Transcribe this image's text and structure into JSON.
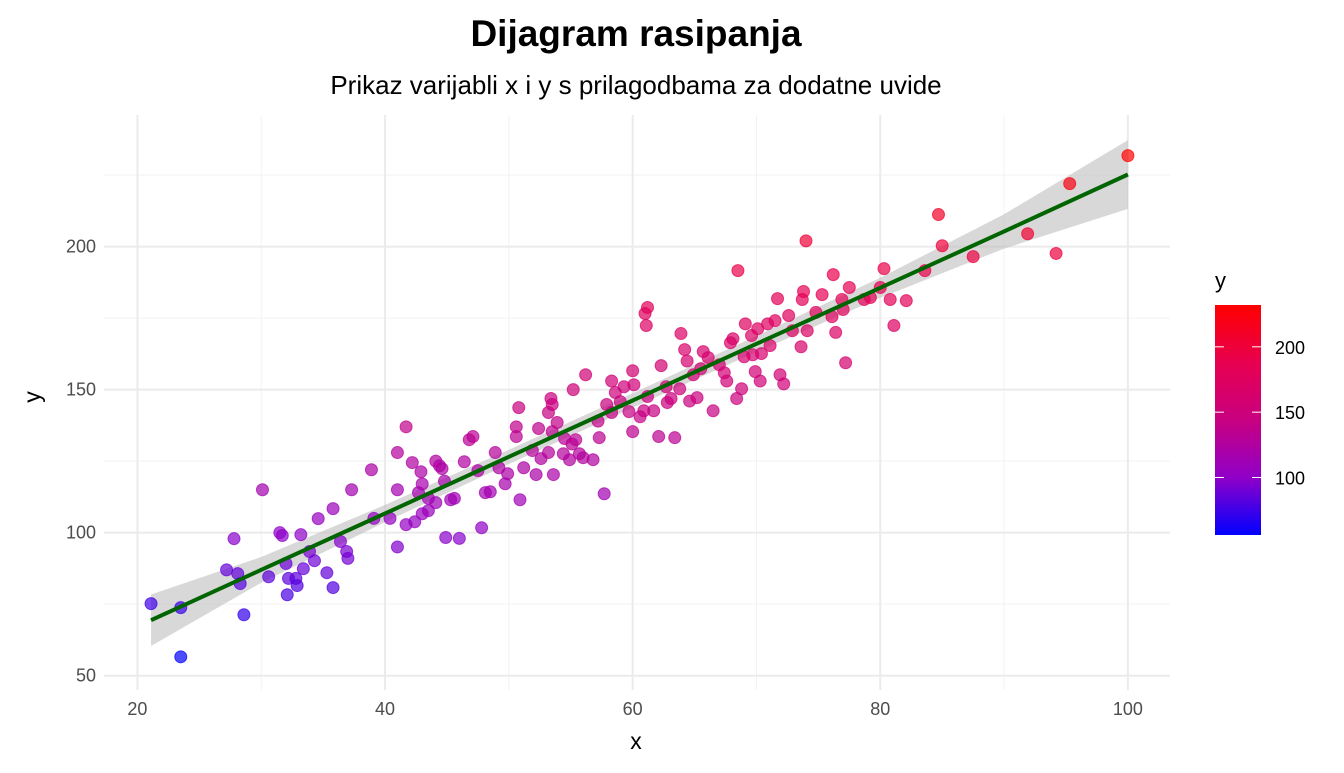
{
  "chart_data": {
    "type": "scatter",
    "title": "Dijagram rasipanja",
    "subtitle": "Prikaz varijabli x i y s prilagodbama za dodatne uvide",
    "xlabel": "x",
    "ylabel": "y",
    "xlim": [
      17.3,
      103.4
    ],
    "ylim": [
      45,
      246
    ],
    "x_ticks": [
      20,
      40,
      60,
      80,
      100
    ],
    "y_ticks": [
      50,
      100,
      150,
      200
    ],
    "x_minor": [
      30,
      50,
      70,
      90
    ],
    "y_minor": [
      75,
      125,
      175,
      225
    ],
    "grid": true,
    "legend": {
      "title": "y",
      "placement": "right",
      "range": [
        56,
        232
      ],
      "ticks": [
        100,
        150,
        200
      ],
      "colors": [
        "#0000FF",
        "#9000C8",
        "#C80080",
        "#E80050",
        "#FF0000"
      ]
    },
    "point_alpha": 0.7,
    "smooth": {
      "color": "#006400",
      "ribbon_color": "#BEBEBE",
      "points": [
        {
          "x": 21.1,
          "y": 69.4,
          "se": 9
        },
        {
          "x": 30,
          "y": 87.0,
          "se": 4.5
        },
        {
          "x": 40,
          "y": 106.7,
          "se": 3
        },
        {
          "x": 50,
          "y": 126.5,
          "se": 2.5
        },
        {
          "x": 60,
          "y": 146.2,
          "se": 2.5
        },
        {
          "x": 70,
          "y": 166.0,
          "se": 2.8
        },
        {
          "x": 80,
          "y": 185.6,
          "se": 3.5
        },
        {
          "x": 90,
          "y": 205.3,
          "se": 6
        },
        {
          "x": 100,
          "y": 225.2,
          "se": 12
        }
      ]
    },
    "points": [
      [
        21.1,
        75.2
      ],
      [
        23.5,
        73.8
      ],
      [
        23.5,
        56.6
      ],
      [
        27.2,
        87
      ],
      [
        27.8,
        97.9
      ],
      [
        28.1,
        85.7
      ],
      [
        28.3,
        82.2
      ],
      [
        28.6,
        71.3
      ],
      [
        30.1,
        115
      ],
      [
        30.6,
        84.6
      ],
      [
        31.5,
        100
      ],
      [
        31.7,
        99
      ],
      [
        32,
        89.2
      ],
      [
        32.1,
        78.3
      ],
      [
        32.2,
        84
      ],
      [
        32.8,
        84
      ],
      [
        32.9,
        81.5
      ],
      [
        33.2,
        99.3
      ],
      [
        33.4,
        87.4
      ],
      [
        33.9,
        93.4
      ],
      [
        34.3,
        90.2
      ],
      [
        34.6,
        104.9
      ],
      [
        35.3,
        86
      ],
      [
        35.8,
        108.4
      ],
      [
        35.8,
        80.8
      ],
      [
        36.4,
        96.9
      ],
      [
        36.9,
        93.4
      ],
      [
        37,
        91
      ],
      [
        37.3,
        115
      ],
      [
        38.9,
        122
      ],
      [
        39.1,
        105
      ],
      [
        40.4,
        105
      ],
      [
        41,
        115
      ],
      [
        41,
        95
      ],
      [
        41,
        128
      ],
      [
        41.7,
        137
      ],
      [
        41.7,
        102.8
      ],
      [
        42.2,
        124.5
      ],
      [
        42.4,
        103.8
      ],
      [
        42.7,
        114
      ],
      [
        42.9,
        121.3
      ],
      [
        43,
        117
      ],
      [
        43,
        106.6
      ],
      [
        43.5,
        112
      ],
      [
        43.5,
        107.7
      ],
      [
        44.1,
        125
      ],
      [
        44.1,
        110.5
      ],
      [
        44.4,
        123.4
      ],
      [
        44.6,
        122.4
      ],
      [
        44.8,
        118
      ],
      [
        44.9,
        98.3
      ],
      [
        45.3,
        111.5
      ],
      [
        45.6,
        112
      ],
      [
        46,
        98
      ],
      [
        46.4,
        124.8
      ],
      [
        46.8,
        132.5
      ],
      [
        47.1,
        133.6
      ],
      [
        47.5,
        121.7
      ],
      [
        47.8,
        101.7
      ],
      [
        48.1,
        114
      ],
      [
        48.5,
        114.3
      ],
      [
        48.9,
        128
      ],
      [
        49.2,
        122.7
      ],
      [
        49.7,
        117.1
      ],
      [
        49.9,
        120.6
      ],
      [
        50.6,
        137
      ],
      [
        50.6,
        133.6
      ],
      [
        50.8,
        143.7
      ],
      [
        50.9,
        111.5
      ],
      [
        51.2,
        122.7
      ],
      [
        51.9,
        128.7
      ],
      [
        52.2,
        120.3
      ],
      [
        52.4,
        136.4
      ],
      [
        52.6,
        125.9
      ],
      [
        53.2,
        128
      ],
      [
        53.2,
        142
      ],
      [
        53.4,
        146.9
      ],
      [
        53.5,
        144.8
      ],
      [
        53.5,
        135.3
      ],
      [
        53.6,
        120.3
      ],
      [
        53.9,
        138.5
      ],
      [
        54.4,
        127.6
      ],
      [
        54.5,
        132.9
      ],
      [
        54.9,
        125.5
      ],
      [
        55.1,
        131
      ],
      [
        55.2,
        150
      ],
      [
        55.4,
        132.5
      ],
      [
        55.7,
        127.6
      ],
      [
        56,
        126.2
      ],
      [
        56.2,
        155.2
      ],
      [
        56.8,
        125.5
      ],
      [
        57.2,
        139
      ],
      [
        57.3,
        133.2
      ],
      [
        57.7,
        113.6
      ],
      [
        57.9,
        144.8
      ],
      [
        58.3,
        142
      ],
      [
        58.3,
        153
      ],
      [
        58.6,
        149
      ],
      [
        59,
        145.8
      ],
      [
        59.3,
        151
      ],
      [
        59.7,
        142.3
      ],
      [
        60,
        135.3
      ],
      [
        60,
        156.6
      ],
      [
        60.1,
        151.7
      ],
      [
        60.6,
        140.5
      ],
      [
        60.9,
        142.6
      ],
      [
        61,
        176.6
      ],
      [
        61.2,
        178.7
      ],
      [
        61.1,
        172.4
      ],
      [
        61.2,
        147.6
      ],
      [
        61.7,
        142.6
      ],
      [
        62.1,
        133.6
      ],
      [
        62.3,
        158.4
      ],
      [
        62.7,
        151
      ],
      [
        62.8,
        145.5
      ],
      [
        63.1,
        146.9
      ],
      [
        63.4,
        133.2
      ],
      [
        63.8,
        150.3
      ],
      [
        63.9,
        169.6
      ],
      [
        64.2,
        164
      ],
      [
        64.4,
        160
      ],
      [
        64.6,
        146
      ],
      [
        64.9,
        155.2
      ],
      [
        65.2,
        147.2
      ],
      [
        65.5,
        157.3
      ],
      [
        65.7,
        163.3
      ],
      [
        66.1,
        161.2
      ],
      [
        66.5,
        142.6
      ],
      [
        67,
        158.7
      ],
      [
        67.4,
        155.9
      ],
      [
        67.6,
        153
      ],
      [
        67.9,
        166.4
      ],
      [
        68.1,
        167.8
      ],
      [
        68.4,
        146.9
      ],
      [
        68.5,
        191.6
      ],
      [
        68.8,
        150.3
      ],
      [
        69,
        161.5
      ],
      [
        69.1,
        173
      ],
      [
        69.6,
        168.9
      ],
      [
        69.7,
        162.2
      ],
      [
        69.9,
        156.3
      ],
      [
        70.1,
        171.3
      ],
      [
        70.3,
        153
      ],
      [
        70.4,
        162.6
      ],
      [
        70.9,
        173
      ],
      [
        71.1,
        165.4
      ],
      [
        71.5,
        174.1
      ],
      [
        71.7,
        181.8
      ],
      [
        71.9,
        155.2
      ],
      [
        72.2,
        152
      ],
      [
        72.6,
        175.9
      ],
      [
        72.9,
        170.6
      ],
      [
        73.6,
        165
      ],
      [
        73.7,
        181.5
      ],
      [
        73.8,
        184.3
      ],
      [
        74,
        202
      ],
      [
        74.1,
        170.6
      ],
      [
        74.8,
        177
      ],
      [
        75.3,
        183.2
      ],
      [
        76.1,
        175.5
      ],
      [
        76.2,
        190.2
      ],
      [
        76.4,
        170
      ],
      [
        76.9,
        181.5
      ],
      [
        77,
        178
      ],
      [
        77.2,
        159.4
      ],
      [
        77.5,
        185.7
      ],
      [
        78.7,
        181.5
      ],
      [
        79.2,
        182.2
      ],
      [
        80,
        185.7
      ],
      [
        80.3,
        192.3
      ],
      [
        80.8,
        181.5
      ],
      [
        81.1,
        172.4
      ],
      [
        82.1,
        181.1
      ],
      [
        83.6,
        191.6
      ],
      [
        84.7,
        211.2
      ],
      [
        85,
        200.3
      ],
      [
        87.5,
        196.5
      ],
      [
        91.9,
        204.5
      ],
      [
        94.2,
        197.6
      ],
      [
        95.3,
        222
      ],
      [
        100,
        231.8
      ]
    ]
  }
}
